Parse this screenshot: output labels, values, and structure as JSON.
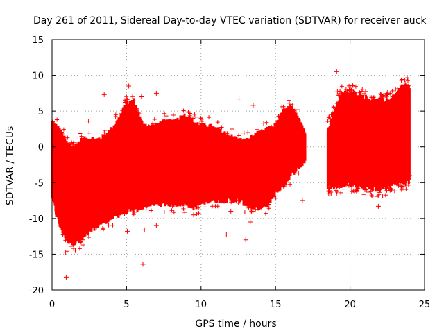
{
  "chart_data": {
    "type": "scatter",
    "title": "Day 261 of 2011, Sidereal Day-to-day VTEC variation (SDTVAR) for receiver auck",
    "xlabel": "GPS time / hours",
    "ylabel": "SDTVAR / TECUs",
    "xlim": [
      0,
      25
    ],
    "ylim": [
      -20,
      15
    ],
    "grid": true,
    "marker": "+",
    "color": "#ff0000",
    "xticks": [
      0,
      5,
      10,
      15,
      20,
      25
    ],
    "xtick_labels": [
      "0",
      "5",
      "10",
      "15",
      "20",
      "25"
    ],
    "yticks": [
      -20,
      -15,
      -10,
      -5,
      0,
      5,
      10,
      15
    ],
    "ytick_labels": [
      "-20",
      "-15",
      "-10",
      "-5",
      "0",
      "5",
      "10",
      "15"
    ],
    "envelope": {
      "x": [
        0.0,
        0.5,
        1.0,
        1.5,
        2.0,
        2.5,
        3.0,
        3.5,
        4.0,
        4.5,
        5.0,
        5.5,
        6.0,
        6.5,
        7.0,
        7.5,
        8.0,
        8.5,
        9.0,
        9.5,
        10.0,
        10.5,
        11.0,
        11.5,
        12.0,
        12.5,
        13.0,
        13.5,
        14.0,
        14.5,
        15.0,
        15.5,
        16.0,
        16.5,
        17.0
      ],
      "upper": [
        3.5,
        2.5,
        0.5,
        0.0,
        1.0,
        1.2,
        1.0,
        1.5,
        2.5,
        4.0,
        6.0,
        6.5,
        3.5,
        2.8,
        3.0,
        3.5,
        3.5,
        4.0,
        4.5,
        3.5,
        3.0,
        3.0,
        2.5,
        2.0,
        1.5,
        1.0,
        0.8,
        1.5,
        2.0,
        2.5,
        3.0,
        5.0,
        5.5,
        4.5,
        2.0
      ],
      "lower": [
        -7.0,
        -11.0,
        -13.0,
        -13.5,
        -13.0,
        -12.0,
        -11.0,
        -10.5,
        -10.0,
        -9.5,
        -9.0,
        -9.0,
        -8.5,
        -8.0,
        -8.0,
        -8.0,
        -8.0,
        -8.0,
        -8.0,
        -8.5,
        -8.0,
        -7.5,
        -7.5,
        -7.5,
        -7.5,
        -7.5,
        -8.0,
        -8.5,
        -8.5,
        -8.0,
        -6.5,
        -5.5,
        -4.0,
        -3.0,
        -2.0
      ]
    },
    "envelope2": {
      "x": [
        18.5,
        19.0,
        19.5,
        20.0,
        20.5,
        21.0,
        21.5,
        22.0,
        22.5,
        23.0,
        23.5,
        24.0
      ],
      "upper": [
        2.5,
        5.5,
        7.5,
        7.5,
        7.5,
        7.0,
        6.5,
        6.5,
        6.5,
        7.0,
        8.5,
        8.5
      ],
      "lower": [
        -5.5,
        -5.5,
        -5.3,
        -5.2,
        -5.2,
        -5.5,
        -5.8,
        -6.0,
        -5.5,
        -5.0,
        -4.8,
        -4.8
      ]
    },
    "outliers": {
      "x": [
        0.95,
        0.9,
        1.45,
        2.45,
        3.5,
        5.05,
        5.15,
        6.1,
        6.2,
        7.0,
        11.7,
        12.55,
        13.0,
        13.5,
        14.2,
        16.8,
        19.1,
        19.15,
        21.9,
        21.0,
        24.0,
        1.0,
        6.0,
        7.0,
        9.5,
        12.0,
        13.3
      ],
      "y": [
        -18.2,
        -14.8,
        -14.2,
        3.6,
        7.3,
        -11.8,
        8.5,
        -16.4,
        -11.6,
        7.5,
        -12.2,
        6.7,
        -13.0,
        5.8,
        3.3,
        -7.5,
        10.5,
        7.7,
        -8.3,
        -6.0,
        -4.0,
        -14.6,
        7.0,
        -11.0,
        -9.5,
        -9.0,
        -10.5
      ]
    }
  }
}
